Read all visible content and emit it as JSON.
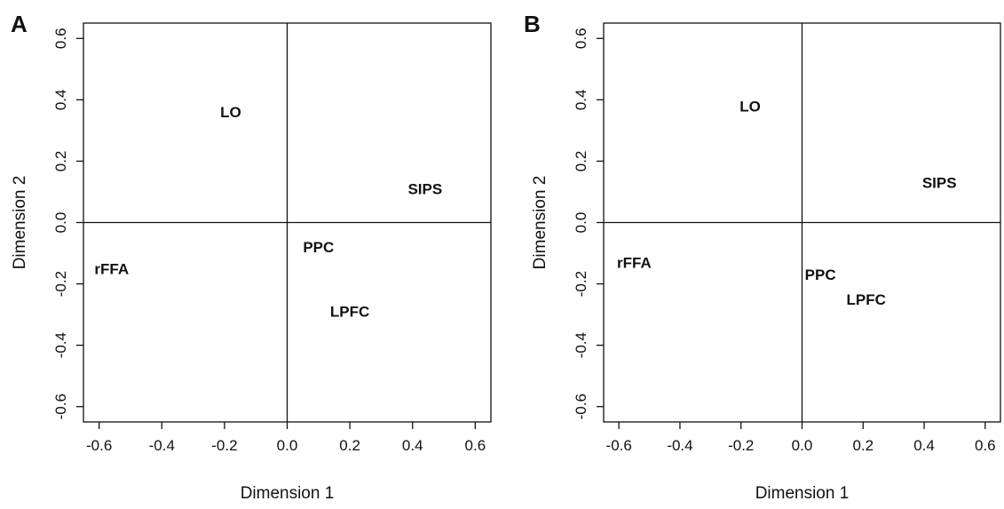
{
  "chart_data": [
    {
      "type": "scatter",
      "panel_label": "A",
      "xlabel": "Dimension 1",
      "ylabel": "Dimension 2",
      "xlim": [
        -0.65,
        0.65
      ],
      "ylim": [
        -0.65,
        0.65
      ],
      "xticks": [
        -0.6,
        -0.4,
        -0.2,
        0.0,
        0.2,
        0.4,
        0.6
      ],
      "yticks": [
        -0.6,
        -0.4,
        -0.2,
        0.0,
        0.2,
        0.4,
        0.6
      ],
      "xtick_labels": [
        "-0.6",
        "-0.4",
        "-0.2",
        "0.0",
        "0.2",
        "0.4",
        "0.6"
      ],
      "ytick_labels": [
        "-0.6",
        "-0.4",
        "-0.2",
        "0.0",
        "0.2",
        "0.4",
        "0.6"
      ],
      "grid": false,
      "reference_lines": {
        "x": 0.0,
        "y": 0.0
      },
      "points": [
        {
          "label": "LO",
          "x": -0.18,
          "y": 0.36
        },
        {
          "label": "SIPS",
          "x": 0.44,
          "y": 0.11
        },
        {
          "label": "rFFA",
          "x": -0.56,
          "y": -0.15
        },
        {
          "label": "PPC",
          "x": 0.1,
          "y": -0.08
        },
        {
          "label": "LPFC",
          "x": 0.2,
          "y": -0.29
        }
      ]
    },
    {
      "type": "scatter",
      "panel_label": "B",
      "xlabel": "Dimension 1",
      "ylabel": "Dimension 2",
      "xlim": [
        -0.65,
        0.65
      ],
      "ylim": [
        -0.65,
        0.65
      ],
      "xticks": [
        -0.6,
        -0.4,
        -0.2,
        0.0,
        0.2,
        0.4,
        0.6
      ],
      "yticks": [
        -0.6,
        -0.4,
        -0.2,
        0.0,
        0.2,
        0.4,
        0.6
      ],
      "xtick_labels": [
        "-0.6",
        "-0.4",
        "-0.2",
        "0.0",
        "0.2",
        "0.4",
        "0.6"
      ],
      "ytick_labels": [
        "-0.6",
        "-0.4",
        "-0.2",
        "0.0",
        "0.2",
        "0.4",
        "0.6"
      ],
      "grid": false,
      "reference_lines": {
        "x": 0.0,
        "y": 0.0
      },
      "points": [
        {
          "label": "LO",
          "x": -0.17,
          "y": 0.38
        },
        {
          "label": "SIPS",
          "x": 0.45,
          "y": 0.13
        },
        {
          "label": "rFFA",
          "x": -0.55,
          "y": -0.13
        },
        {
          "label": "PPC",
          "x": 0.06,
          "y": -0.17
        },
        {
          "label": "LPFC",
          "x": 0.21,
          "y": -0.25
        }
      ]
    }
  ]
}
